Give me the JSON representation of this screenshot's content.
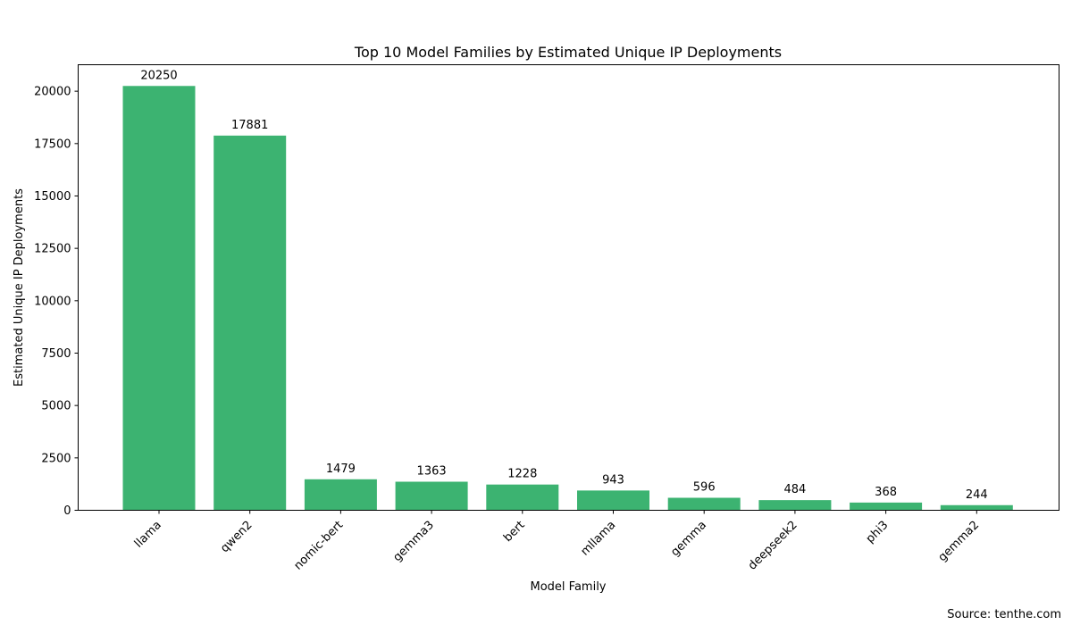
{
  "chart_data": {
    "type": "bar",
    "title": "Top 10 Model Families by Estimated Unique IP Deployments",
    "xlabel": "Model Family",
    "ylabel": "Estimated Unique IP Deployments",
    "categories": [
      "llama",
      "qwen2",
      "nomic-bert",
      "gemma3",
      "bert",
      "mllama",
      "gemma",
      "deepseek2",
      "phi3",
      "gemma2"
    ],
    "values": [
      20250,
      17881,
      1479,
      1363,
      1228,
      943,
      596,
      484,
      368,
      244
    ],
    "ylim": [
      0,
      21263
    ],
    "yticks": [
      0,
      2500,
      5000,
      7500,
      10000,
      12500,
      15000,
      17500,
      20000
    ],
    "bar_color": "#3cb371",
    "data_labels": true,
    "grid": false
  },
  "footer": {
    "source": "Source: tenthe.com"
  }
}
